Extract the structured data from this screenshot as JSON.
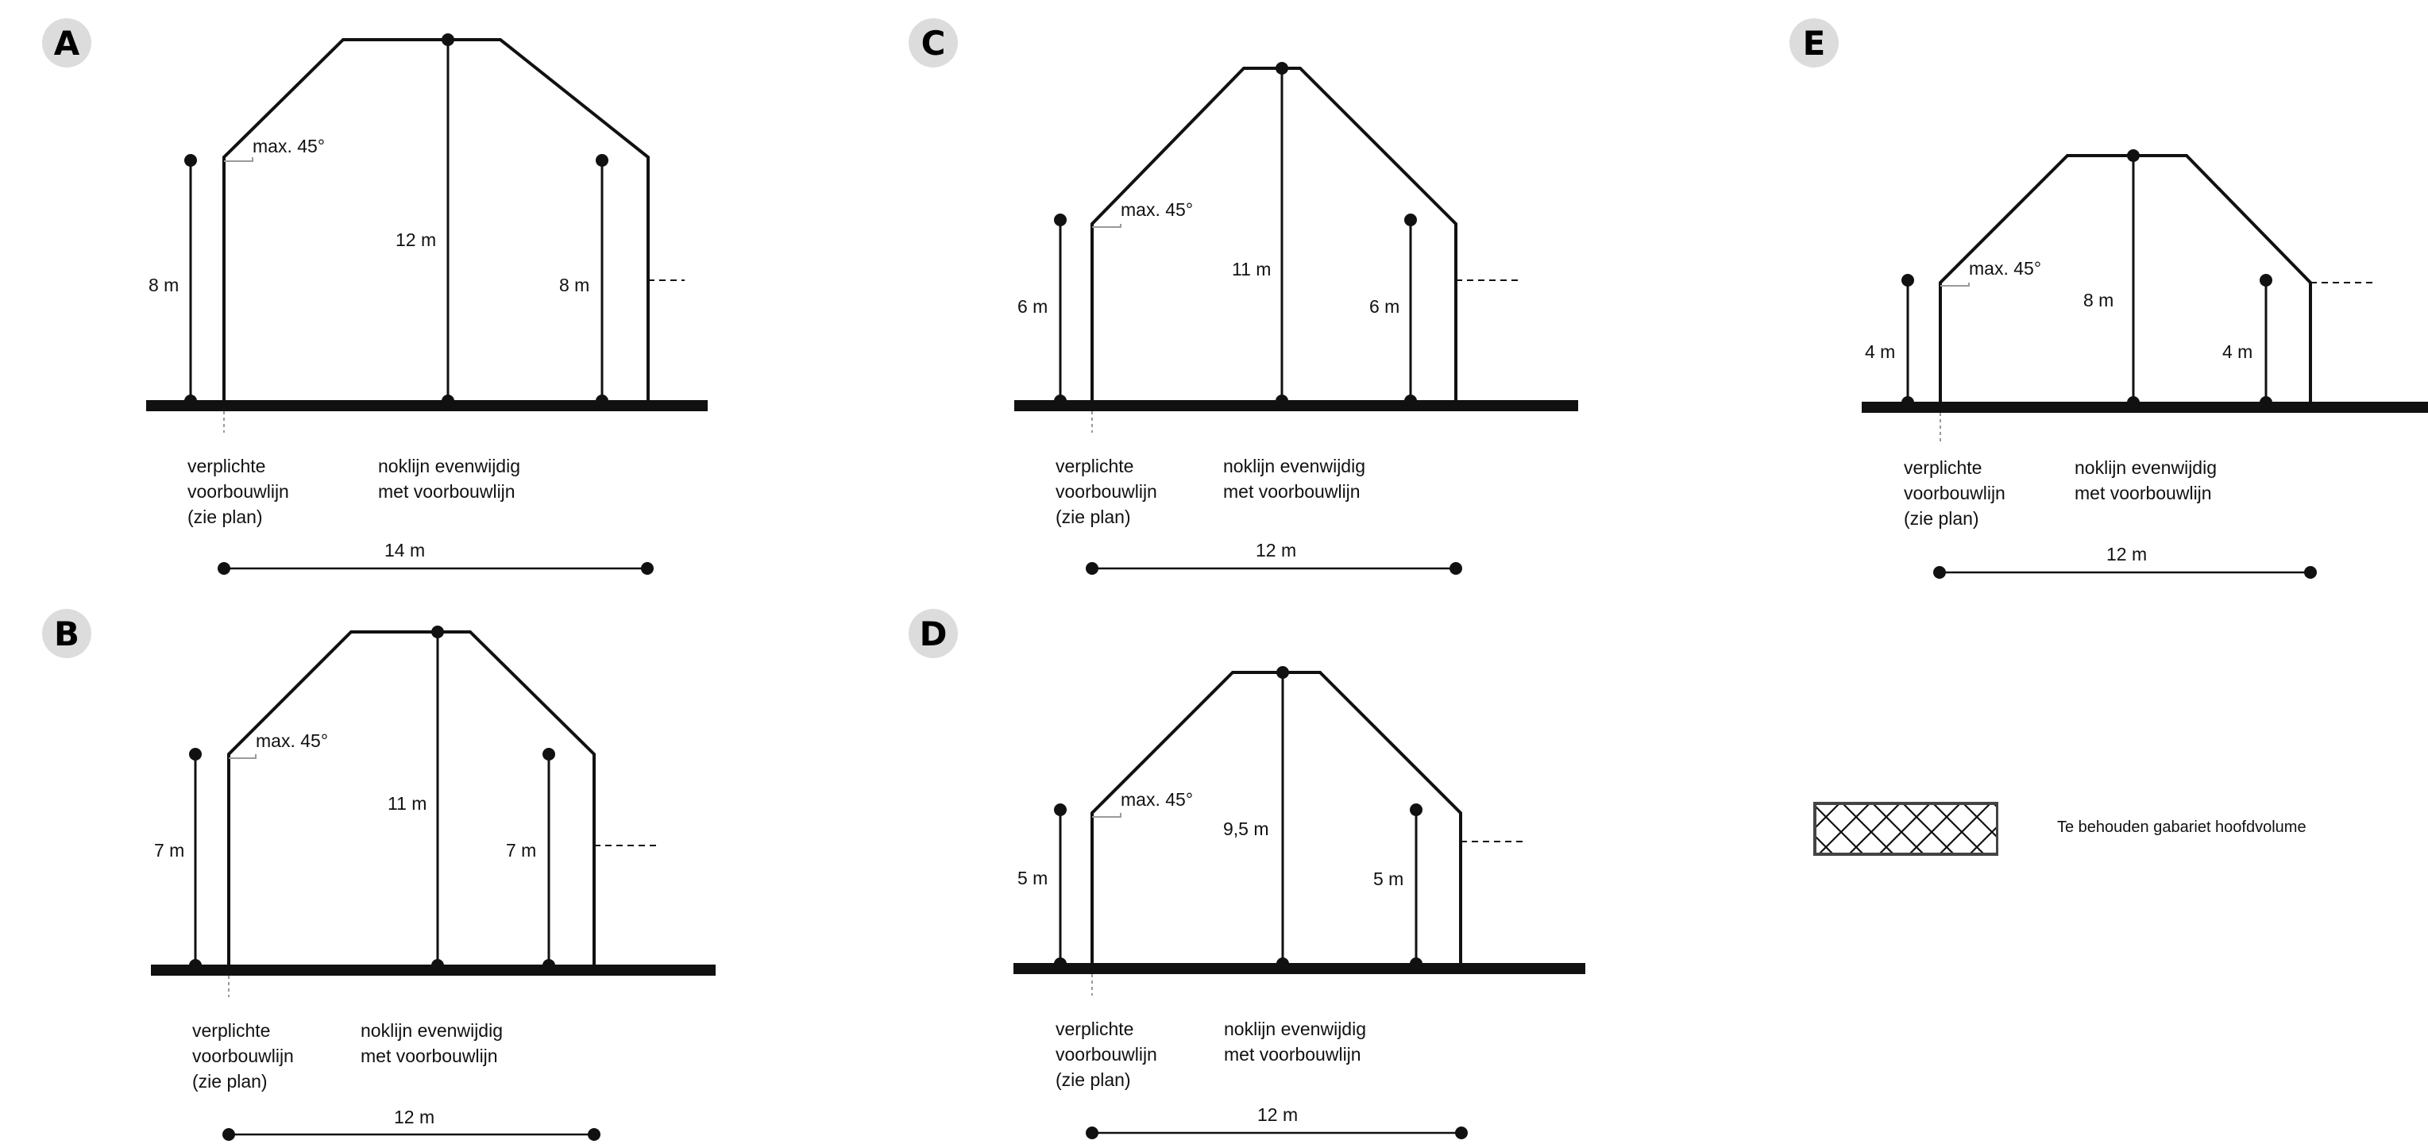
{
  "profiles": [
    {
      "letter": "A",
      "angle_label": "max. 45°",
      "ridge_height_label": "12 m",
      "left_eave_label": "8 m",
      "right_eave_label": "8 m",
      "front_line_label": "verplichte\nvoorbouwlijn\n(zie plan)",
      "ridge_note_label": "noklijn evenwijdig\nmet voorbouwlijn",
      "depth_label": "14 m",
      "ridge_height_m": 12,
      "eave_height_m": 8,
      "depth_m": 14
    },
    {
      "letter": "B",
      "angle_label": "max. 45°",
      "ridge_height_label": "11 m",
      "left_eave_label": "7 m",
      "right_eave_label": "7 m",
      "front_line_label": "verplichte\nvoorbouwlijn\n(zie plan)",
      "ridge_note_label": "noklijn evenwijdig\nmet voorbouwlijn",
      "depth_label": "12 m",
      "ridge_height_m": 11,
      "eave_height_m": 7,
      "depth_m": 12
    },
    {
      "letter": "C",
      "angle_label": "max. 45°",
      "ridge_height_label": "11 m",
      "left_eave_label": "6 m",
      "right_eave_label": "6 m",
      "front_line_label": "verplichte\nvoorbouwlijn\n(zie plan)",
      "ridge_note_label": "noklijn evenwijdig\nmet voorbouwlijn",
      "depth_label": "12 m",
      "ridge_height_m": 11,
      "eave_height_m": 6,
      "depth_m": 12
    },
    {
      "letter": "D",
      "angle_label": "max. 45°",
      "ridge_height_label": "9,5 m",
      "left_eave_label": "5 m",
      "right_eave_label": "5 m",
      "front_line_label": "verplichte\nvoorbouwlijn\n(zie plan)",
      "ridge_note_label": "noklijn evenwijdig\nmet voorbouwlijn",
      "depth_label": "12 m",
      "ridge_height_m": 9.5,
      "eave_height_m": 5,
      "depth_m": 12
    },
    {
      "letter": "E",
      "angle_label": "max. 45°",
      "ridge_height_label": "8 m",
      "left_eave_label": "4 m",
      "right_eave_label": "4 m",
      "front_line_label": "verplichte\nvoorbouwlijn\n(zie plan)",
      "ridge_note_label": "noklijn evenwijdig\nmet voorbouwlijn",
      "depth_label": "12 m",
      "ridge_height_m": 8,
      "eave_height_m": 4,
      "depth_m": 12
    }
  ],
  "legend": {
    "label": "Te behouden gabariet hoofdvolume",
    "pattern": "crosshatch"
  },
  "colors": {
    "line": "#111111",
    "badge": "#dcdcdc",
    "guide": "#9a9a9a"
  }
}
